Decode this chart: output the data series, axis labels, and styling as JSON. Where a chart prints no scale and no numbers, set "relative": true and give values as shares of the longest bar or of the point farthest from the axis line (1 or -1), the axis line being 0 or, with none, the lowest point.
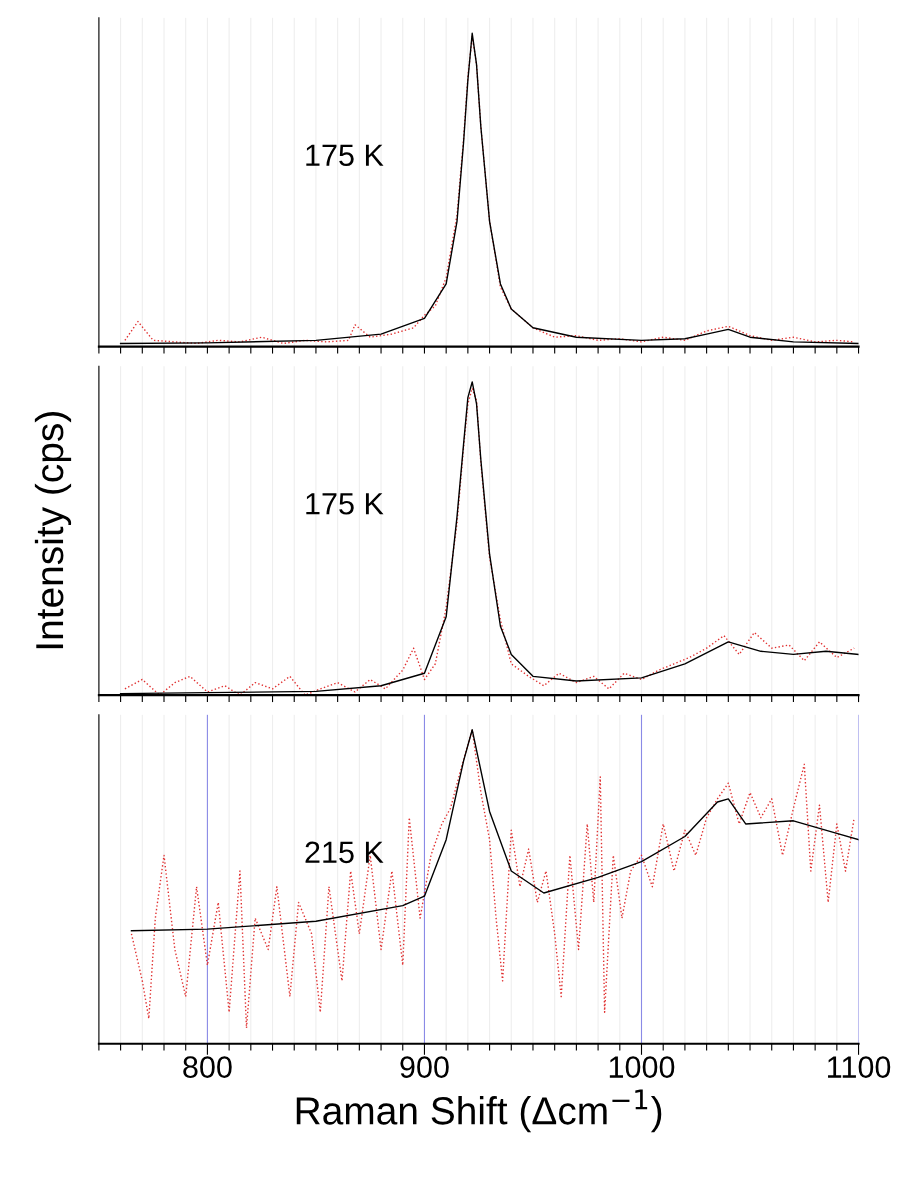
{
  "chart_data": [
    {
      "type": "line",
      "relative": true,
      "annotations": [
        "175 K"
      ],
      "grid": "x",
      "tick_labels": false,
      "xlim": [
        750,
        1100
      ],
      "xticks": [
        {
          "value": 750,
          "label": null
        },
        {
          "value": 760,
          "label": null
        },
        {
          "value": 770,
          "label": null
        },
        {
          "value": 780,
          "label": null
        },
        {
          "value": 790,
          "label": null
        },
        {
          "value": 800,
          "label": null
        },
        {
          "value": 810,
          "label": null
        },
        {
          "value": 820,
          "label": null
        },
        {
          "value": 830,
          "label": null
        },
        {
          "value": 840,
          "label": null
        },
        {
          "value": 850,
          "label": null
        },
        {
          "value": 860,
          "label": null
        },
        {
          "value": 870,
          "label": null
        },
        {
          "value": 880,
          "label": null
        },
        {
          "value": 890,
          "label": null
        },
        {
          "value": 900,
          "label": null
        },
        {
          "value": 910,
          "label": null
        },
        {
          "value": 920,
          "label": null
        },
        {
          "value": 930,
          "label": null
        },
        {
          "value": 940,
          "label": null
        },
        {
          "value": 950,
          "label": null
        },
        {
          "value": 960,
          "label": null
        },
        {
          "value": 970,
          "label": null
        },
        {
          "value": 980,
          "label": null
        },
        {
          "value": 990,
          "label": null
        },
        {
          "value": 1000,
          "label": null
        },
        {
          "value": 1010,
          "label": null
        },
        {
          "value": 1020,
          "label": null
        },
        {
          "value": 1030,
          "label": null
        },
        {
          "value": 1040,
          "label": null
        },
        {
          "value": 1050,
          "label": null
        },
        {
          "value": 1060,
          "label": null
        },
        {
          "value": 1070,
          "label": null
        },
        {
          "value": 1080,
          "label": null
        },
        {
          "value": 1090,
          "label": null
        },
        {
          "value": 1100,
          "label": null
        }
      ],
      "series": [
        {
          "color": "#e03030",
          "line_style": "dotted",
          "x": [
            762,
            768,
            775,
            785,
            795,
            805,
            815,
            825,
            835,
            845,
            855,
            865,
            868,
            875,
            885,
            895,
            900,
            905,
            910,
            915,
            918,
            920,
            922,
            924,
            926,
            930,
            935,
            940,
            950,
            960,
            970,
            980,
            990,
            1000,
            1010,
            1020,
            1030,
            1040,
            1050,
            1060,
            1070,
            1080,
            1090,
            1098
          ],
          "values": [
            0.02,
            0.08,
            0.02,
            0.015,
            0.01,
            0.02,
            0.015,
            0.03,
            0.01,
            0.02,
            0.015,
            0.02,
            0.07,
            0.03,
            0.04,
            0.06,
            0.1,
            0.13,
            0.22,
            0.42,
            0.66,
            0.86,
            0.99,
            0.9,
            0.7,
            0.4,
            0.19,
            0.12,
            0.06,
            0.03,
            0.035,
            0.02,
            0.025,
            0.015,
            0.03,
            0.02,
            0.05,
            0.065,
            0.035,
            0.02,
            0.03,
            0.015,
            0.02,
            0.015
          ]
        },
        {
          "color": "#000000",
          "line_style": "solid",
          "x": [
            760,
            800,
            850,
            880,
            900,
            910,
            915,
            918,
            920,
            922,
            924,
            926,
            930,
            935,
            940,
            950,
            970,
            1000,
            1020,
            1030,
            1040,
            1050,
            1070,
            1100
          ],
          "values": [
            0.01,
            0.012,
            0.02,
            0.04,
            0.09,
            0.2,
            0.4,
            0.65,
            0.85,
            1.0,
            0.9,
            0.7,
            0.4,
            0.2,
            0.12,
            0.06,
            0.03,
            0.02,
            0.025,
            0.04,
            0.055,
            0.03,
            0.015,
            0.01
          ]
        }
      ]
    },
    {
      "type": "line",
      "relative": true,
      "ylabel": "Intensity (cps)",
      "annotations": [
        "175 K"
      ],
      "grid": "x",
      "tick_labels": false,
      "xlim": [
        750,
        1100
      ],
      "xticks": [
        {
          "value": 750,
          "label": null
        },
        {
          "value": 760,
          "label": null
        },
        {
          "value": 770,
          "label": null
        },
        {
          "value": 780,
          "label": null
        },
        {
          "value": 790,
          "label": null
        },
        {
          "value": 800,
          "label": null
        },
        {
          "value": 810,
          "label": null
        },
        {
          "value": 820,
          "label": null
        },
        {
          "value": 830,
          "label": null
        },
        {
          "value": 840,
          "label": null
        },
        {
          "value": 850,
          "label": null
        },
        {
          "value": 860,
          "label": null
        },
        {
          "value": 870,
          "label": null
        },
        {
          "value": 880,
          "label": null
        },
        {
          "value": 890,
          "label": null
        },
        {
          "value": 900,
          "label": null
        },
        {
          "value": 910,
          "label": null
        },
        {
          "value": 920,
          "label": null
        },
        {
          "value": 930,
          "label": null
        },
        {
          "value": 940,
          "label": null
        },
        {
          "value": 950,
          "label": null
        },
        {
          "value": 960,
          "label": null
        },
        {
          "value": 970,
          "label": null
        },
        {
          "value": 980,
          "label": null
        },
        {
          "value": 990,
          "label": null
        },
        {
          "value": 1000,
          "label": null
        },
        {
          "value": 1010,
          "label": null
        },
        {
          "value": 1020,
          "label": null
        },
        {
          "value": 1030,
          "label": null
        },
        {
          "value": 1040,
          "label": null
        },
        {
          "value": 1050,
          "label": null
        },
        {
          "value": 1060,
          "label": null
        },
        {
          "value": 1070,
          "label": null
        },
        {
          "value": 1080,
          "label": null
        },
        {
          "value": 1090,
          "label": null
        },
        {
          "value": 1100,
          "label": null
        }
      ],
      "series": [
        {
          "color": "#e03030",
          "line_style": "dotted",
          "x": [
            762,
            770,
            778,
            785,
            792,
            800,
            808,
            815,
            822,
            830,
            838,
            845,
            852,
            860,
            868,
            875,
            882,
            890,
            895,
            900,
            905,
            910,
            915,
            918,
            920,
            922,
            924,
            926,
            930,
            935,
            940,
            948,
            955,
            962,
            970,
            978,
            985,
            992,
            1000,
            1008,
            1015,
            1022,
            1030,
            1038,
            1045,
            1052,
            1060,
            1068,
            1075,
            1082,
            1090,
            1098
          ],
          "values": [
            0.02,
            0.05,
            0.0,
            0.04,
            0.06,
            0.01,
            0.03,
            0.0,
            0.04,
            0.02,
            0.06,
            0.0,
            0.02,
            0.04,
            0.01,
            0.05,
            0.02,
            0.08,
            0.15,
            0.05,
            0.1,
            0.28,
            0.55,
            0.79,
            0.93,
            0.98,
            0.94,
            0.74,
            0.44,
            0.24,
            0.1,
            0.06,
            0.03,
            0.07,
            0.04,
            0.06,
            0.02,
            0.07,
            0.05,
            0.08,
            0.1,
            0.12,
            0.15,
            0.19,
            0.13,
            0.2,
            0.15,
            0.16,
            0.11,
            0.17,
            0.12,
            0.15
          ]
        },
        {
          "color": "#000000",
          "line_style": "solid",
          "x": [
            760,
            800,
            850,
            880,
            900,
            910,
            915,
            918,
            920,
            922,
            924,
            926,
            930,
            935,
            940,
            950,
            970,
            1000,
            1020,
            1040,
            1055,
            1070,
            1085,
            1100
          ],
          "values": [
            0.005,
            0.008,
            0.012,
            0.03,
            0.07,
            0.25,
            0.57,
            0.8,
            0.95,
            1.0,
            0.93,
            0.75,
            0.45,
            0.22,
            0.13,
            0.06,
            0.045,
            0.055,
            0.1,
            0.17,
            0.14,
            0.13,
            0.14,
            0.13
          ]
        }
      ]
    },
    {
      "type": "line",
      "relative": true,
      "xlabel": "Raman Shift (Δcm$^{−1}$)",
      "annotations": [
        "215 K"
      ],
      "grid": "x",
      "tick_labels": "x",
      "xlim": [
        750,
        1100
      ],
      "xticks": [
        {
          "value": 750,
          "label": null
        },
        {
          "value": 760,
          "label": null
        },
        {
          "value": 770,
          "label": null
        },
        {
          "value": 780,
          "label": null
        },
        {
          "value": 790,
          "label": null
        },
        800,
        {
          "value": 810,
          "label": null
        },
        {
          "value": 820,
          "label": null
        },
        {
          "value": 830,
          "label": null
        },
        {
          "value": 840,
          "label": null
        },
        {
          "value": 850,
          "label": null
        },
        {
          "value": 860,
          "label": null
        },
        {
          "value": 870,
          "label": null
        },
        {
          "value": 880,
          "label": null
        },
        {
          "value": 890,
          "label": null
        },
        900,
        {
          "value": 910,
          "label": null
        },
        {
          "value": 920,
          "label": null
        },
        {
          "value": 930,
          "label": null
        },
        {
          "value": 940,
          "label": null
        },
        {
          "value": 950,
          "label": null
        },
        {
          "value": 960,
          "label": null
        },
        {
          "value": 970,
          "label": null
        },
        {
          "value": 980,
          "label": null
        },
        {
          "value": 990,
          "label": null
        },
        1000,
        {
          "value": 1010,
          "label": null
        },
        {
          "value": 1020,
          "label": null
        },
        {
          "value": 1030,
          "label": null
        },
        {
          "value": 1040,
          "label": null
        },
        {
          "value": 1050,
          "label": null
        },
        {
          "value": 1060,
          "label": null
        },
        {
          "value": 1070,
          "label": null
        },
        {
          "value": 1080,
          "label": null
        },
        {
          "value": 1090,
          "label": null
        },
        1100
      ],
      "series": [
        {
          "color": "#e03030",
          "line_style": "dotted",
          "x": [
            765,
            770,
            773,
            776,
            780,
            785,
            790,
            795,
            800,
            805,
            810,
            815,
            818,
            822,
            828,
            832,
            838,
            842,
            848,
            852,
            856,
            862,
            866,
            870,
            875,
            880,
            885,
            890,
            893,
            898,
            903,
            908,
            912,
            917,
            922,
            926,
            930,
            933,
            936,
            940,
            944,
            948,
            952,
            956,
            960,
            963,
            967,
            971,
            975,
            978,
            981,
            983,
            987,
            991,
            995,
            1000,
            1005,
            1010,
            1015,
            1020,
            1025,
            1030,
            1035,
            1040,
            1045,
            1050,
            1055,
            1060,
            1065,
            1070,
            1075,
            1078,
            1082,
            1086,
            1090,
            1094,
            1098
          ],
          "values": [
            0.35,
            0.2,
            0.08,
            0.4,
            0.6,
            0.3,
            0.15,
            0.5,
            0.25,
            0.45,
            0.1,
            0.55,
            0.05,
            0.4,
            0.3,
            0.5,
            0.15,
            0.45,
            0.35,
            0.1,
            0.5,
            0.2,
            0.55,
            0.35,
            0.6,
            0.3,
            0.55,
            0.25,
            0.72,
            0.4,
            0.6,
            0.7,
            0.75,
            0.88,
            1.0,
            0.8,
            0.65,
            0.4,
            0.2,
            0.68,
            0.5,
            0.62,
            0.45,
            0.55,
            0.35,
            0.15,
            0.6,
            0.3,
            0.7,
            0.45,
            0.85,
            0.1,
            0.6,
            0.4,
            0.55,
            0.6,
            0.5,
            0.7,
            0.55,
            0.68,
            0.6,
            0.72,
            0.78,
            0.83,
            0.7,
            0.8,
            0.72,
            0.78,
            0.6,
            0.75,
            0.89,
            0.55,
            0.76,
            0.45,
            0.7,
            0.55,
            0.72
          ]
        },
        {
          "color": "#000000",
          "line_style": "solid",
          "x": [
            765,
            800,
            850,
            890,
            900,
            910,
            918,
            922,
            930,
            940,
            955,
            980,
            1000,
            1020,
            1035,
            1040,
            1048,
            1070,
            1090,
            1100
          ],
          "values": [
            0.36,
            0.365,
            0.39,
            0.44,
            0.47,
            0.65,
            0.9,
            1.0,
            0.74,
            0.55,
            0.48,
            0.53,
            0.58,
            0.66,
            0.77,
            0.78,
            0.7,
            0.71,
            0.67,
            0.65
          ]
        }
      ]
    }
  ]
}
